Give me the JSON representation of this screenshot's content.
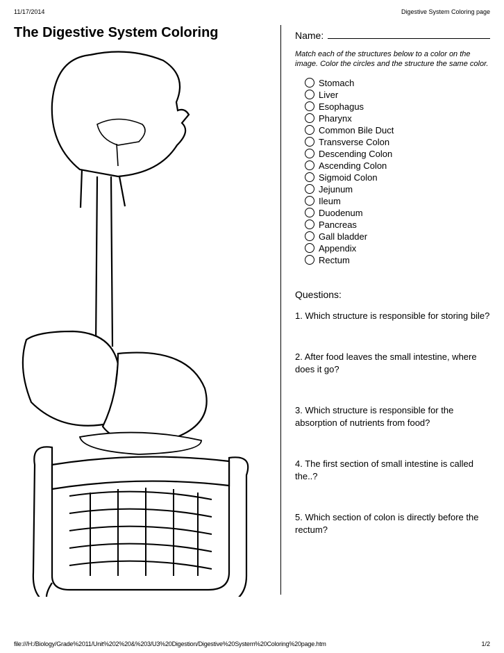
{
  "header": {
    "date": "11/17/2014",
    "doc_title": "Digestive System Coloring page"
  },
  "title": "The Digestive System Coloring",
  "name_label": "Name:",
  "instructions": "Match each of the structures below to a color on the image. Color the circles and the structure the same color.",
  "structures": [
    "Stomach",
    "Liver",
    "Esophagus",
    "Pharynx",
    "Common Bile Duct",
    "Transverse Colon",
    "Descending Colon",
    "Ascending Colon",
    "Sigmoid Colon",
    "Jejunum",
    "Ileum",
    "Duodenum",
    "Pancreas",
    "Gall bladder",
    "Appendix",
    "Rectum"
  ],
  "questions_header": "Questions:",
  "questions": [
    "1. Which structure is responsible for storing bile?",
    "2. After food leaves the small intestine, where does it go?",
    "3. Which structure is responsible for the absorption of nutrients from food?",
    "4. The first section of small intestine is called the..?",
    "5. Which section of colon is directly before the rectum?"
  ],
  "footer": {
    "path": "file:///H:/Biology/Grade%2011/Unit%202%20&%203/U3%20Digestion/Digestive%20System%20Coloring%20page.htm",
    "page": "1/2"
  },
  "colors": {
    "text": "#000000",
    "background": "#ffffff",
    "stroke": "#000000"
  },
  "diagram": {
    "type": "anatomical-line-drawing",
    "description": "Outline drawing of human head profile, esophagus, liver, stomach, pancreas, small and large intestines for coloring",
    "stroke_color": "#000000",
    "stroke_width": 2,
    "fill": "#ffffff"
  }
}
